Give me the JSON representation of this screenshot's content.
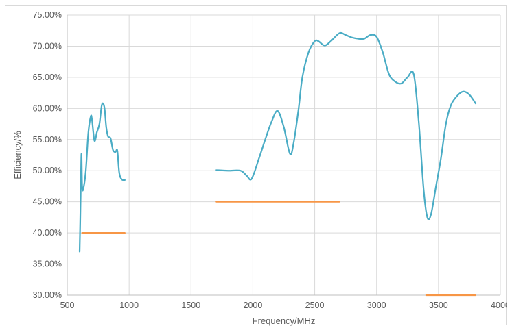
{
  "chart_data": {
    "type": "line",
    "xlabel": "Frequency/MHz",
    "ylabel": "Efficiency/%",
    "xlim": [
      500,
      4000
    ],
    "ylim": [
      0.3,
      0.75
    ],
    "x_ticks": [
      500,
      1000,
      1500,
      2000,
      2500,
      3000,
      3500,
      4000
    ],
    "y_ticks": [
      0.3,
      0.35,
      0.4,
      0.45,
      0.5,
      0.55,
      0.6,
      0.65,
      0.7,
      0.75
    ],
    "y_tick_labels": [
      "30.00%",
      "35.00%",
      "40.00%",
      "45.00%",
      "50.00%",
      "55.00%",
      "60.00%",
      "65.00%",
      "70.00%",
      "75.00%"
    ],
    "grid": "vertical and horizontal",
    "legend": "none",
    "colors": {
      "efficiency": "#4aacc5",
      "threshold": "#f79646",
      "grid": "#d9d9d9",
      "axis": "#bfbfbf"
    },
    "series": [
      {
        "role": "efficiency",
        "color": "#4aacc5",
        "segments": [
          [
            [
              600,
              0.37
            ],
            [
              605,
              0.42
            ],
            [
              610,
              0.48
            ],
            [
              615,
              0.527
            ],
            [
              620,
              0.475
            ],
            [
              630,
              0.471
            ],
            [
              650,
              0.5
            ],
            [
              670,
              0.56
            ],
            [
              690,
              0.587
            ],
            [
              700,
              0.582
            ],
            [
              720,
              0.548
            ],
            [
              740,
              0.562
            ],
            [
              760,
              0.575
            ],
            [
              780,
              0.606
            ],
            [
              800,
              0.602
            ],
            [
              815,
              0.57
            ],
            [
              830,
              0.555
            ],
            [
              850,
              0.552
            ],
            [
              870,
              0.533
            ],
            [
              890,
              0.53
            ],
            [
              905,
              0.532
            ],
            [
              920,
              0.497
            ],
            [
              940,
              0.486
            ],
            [
              965,
              0.485
            ]
          ],
          [
            [
              1700,
              0.501
            ],
            [
              1800,
              0.5
            ],
            [
              1900,
              0.5
            ],
            [
              1950,
              0.492
            ],
            [
              1990,
              0.487
            ],
            [
              2050,
              0.52
            ],
            [
              2100,
              0.55
            ],
            [
              2150,
              0.578
            ],
            [
              2200,
              0.596
            ],
            [
              2250,
              0.57
            ],
            [
              2300,
              0.527
            ],
            [
              2330,
              0.545
            ],
            [
              2370,
              0.6
            ],
            [
              2400,
              0.65
            ],
            [
              2450,
              0.69
            ],
            [
              2500,
              0.708
            ],
            [
              2530,
              0.708
            ],
            [
              2580,
              0.701
            ],
            [
              2630,
              0.708
            ],
            [
              2700,
              0.721
            ],
            [
              2750,
              0.718
            ],
            [
              2800,
              0.714
            ],
            [
              2850,
              0.712
            ],
            [
              2900,
              0.712
            ],
            [
              2950,
              0.718
            ],
            [
              3000,
              0.715
            ],
            [
              3050,
              0.69
            ],
            [
              3100,
              0.655
            ],
            [
              3150,
              0.643
            ],
            [
              3200,
              0.64
            ],
            [
              3250,
              0.65
            ],
            [
              3300,
              0.655
            ],
            [
              3340,
              0.58
            ],
            [
              3380,
              0.47
            ],
            [
              3410,
              0.425
            ],
            [
              3440,
              0.43
            ],
            [
              3480,
              0.475
            ],
            [
              3520,
              0.52
            ],
            [
              3560,
              0.575
            ],
            [
              3600,
              0.605
            ],
            [
              3650,
              0.62
            ],
            [
              3700,
              0.627
            ],
            [
              3750,
              0.622
            ],
            [
              3800,
              0.608
            ]
          ]
        ]
      },
      {
        "role": "threshold",
        "color": "#f79646",
        "segments": [
          [
            [
              620,
              0.4
            ],
            [
              965,
              0.4
            ]
          ],
          [
            [
              1700,
              0.45
            ],
            [
              2700,
              0.45
            ]
          ],
          [
            [
              3400,
              0.3
            ],
            [
              3800,
              0.3
            ]
          ]
        ]
      }
    ]
  }
}
